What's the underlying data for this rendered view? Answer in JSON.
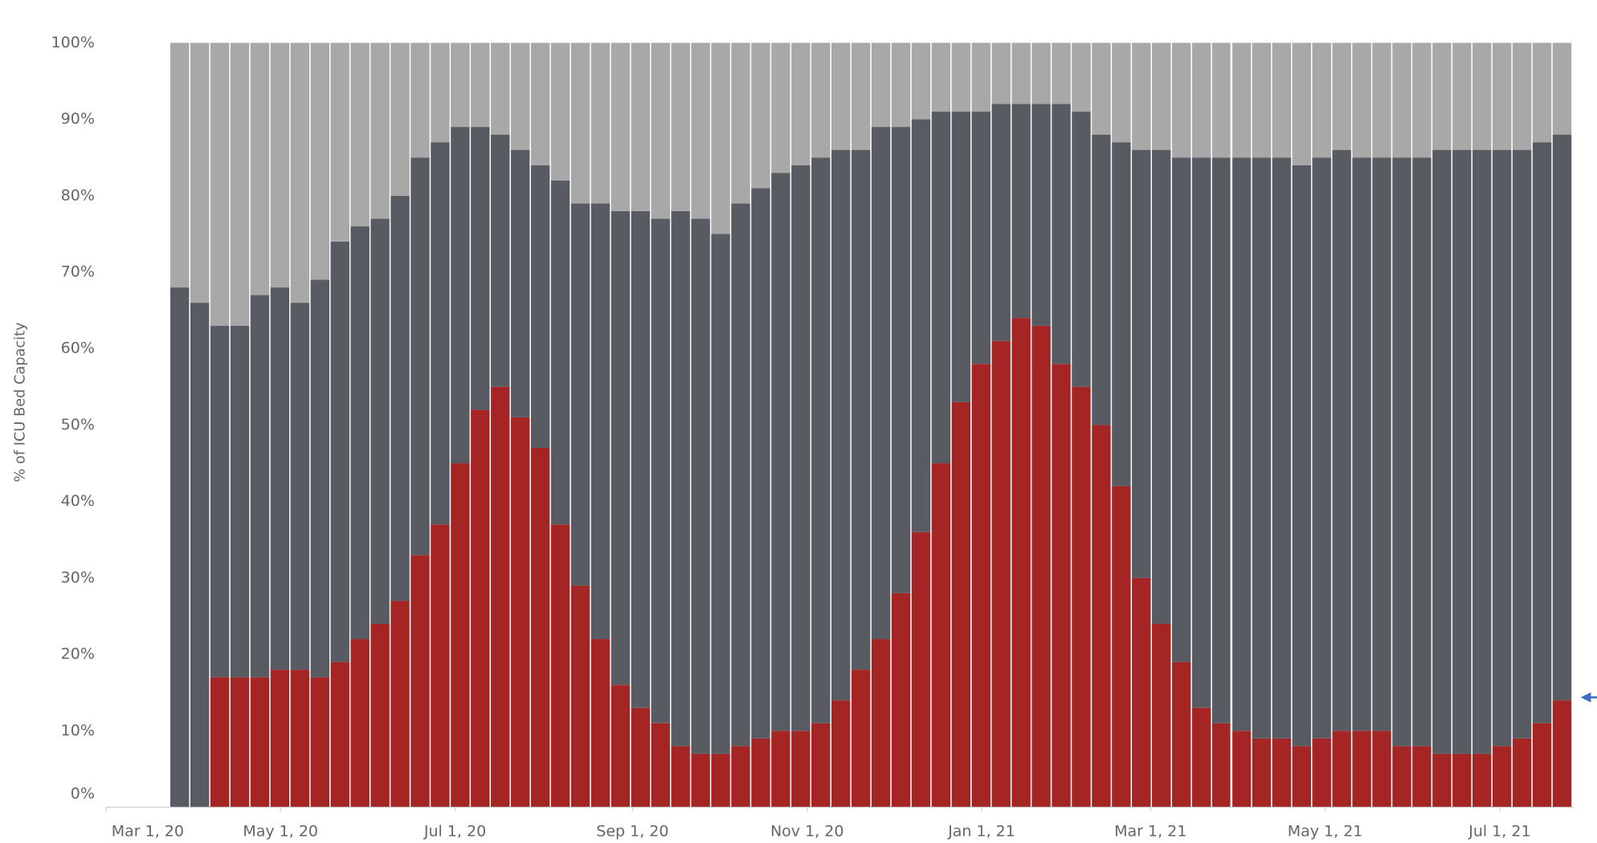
{
  "chart_data": {
    "type": "stacked_bar",
    "y_label": "% of ICU Bed Capacity",
    "x": [
      "2020-03-27",
      "2020-04-03",
      "2020-04-10",
      "2020-04-17",
      "2020-04-24",
      "2020-05-01",
      "2020-05-08",
      "2020-05-15",
      "2020-05-22",
      "2020-05-29",
      "2020-06-05",
      "2020-06-12",
      "2020-06-19",
      "2020-06-26",
      "2020-07-03",
      "2020-07-10",
      "2020-07-17",
      "2020-07-24",
      "2020-07-31",
      "2020-08-07",
      "2020-08-14",
      "2020-08-21",
      "2020-08-28",
      "2020-09-04",
      "2020-09-11",
      "2020-09-18",
      "2020-09-25",
      "2020-10-02",
      "2020-10-09",
      "2020-10-16",
      "2020-10-23",
      "2020-10-30",
      "2020-11-06",
      "2020-11-13",
      "2020-11-20",
      "2020-11-27",
      "2020-12-04",
      "2020-12-11",
      "2020-12-18",
      "2020-12-25",
      "2021-01-01",
      "2021-01-08",
      "2021-01-15",
      "2021-01-22",
      "2021-01-29",
      "2021-02-05",
      "2021-02-12",
      "2021-02-19",
      "2021-02-26",
      "2021-03-05",
      "2021-03-12",
      "2021-03-19",
      "2021-03-26",
      "2021-04-02",
      "2021-04-09",
      "2021-04-16",
      "2021-04-23",
      "2021-04-30",
      "2021-05-07",
      "2021-05-14",
      "2021-05-21",
      "2021-05-28",
      "2021-06-04",
      "2021-06-11",
      "2021-06-18",
      "2021-06-25",
      "2021-07-02",
      "2021-07-09",
      "2021-07-16",
      "2021-07-23"
    ],
    "series": [
      {
        "color": "#a52525",
        "values": [
          0,
          0,
          17,
          17,
          17,
          18,
          18,
          17,
          19,
          22,
          24,
          27,
          33,
          37,
          45,
          52,
          55,
          51,
          47,
          37,
          29,
          22,
          16,
          13,
          11,
          8,
          7,
          7,
          8,
          9,
          10,
          10,
          11,
          14,
          18,
          22,
          28,
          36,
          45,
          53,
          58,
          61,
          64,
          63,
          58,
          55,
          50,
          42,
          30,
          24,
          19,
          13,
          11,
          10,
          9,
          9,
          8,
          9,
          10,
          10,
          10,
          8,
          8,
          7,
          7,
          7,
          8,
          9,
          11,
          14
        ]
      },
      {
        "color": "#585b61",
        "values": [
          68,
          66,
          46,
          46,
          50,
          50,
          48,
          52,
          55,
          54,
          53,
          53,
          52,
          50,
          44,
          37,
          33,
          35,
          37,
          45,
          50,
          57,
          62,
          65,
          66,
          70,
          70,
          68,
          71,
          72,
          73,
          74,
          74,
          72,
          68,
          67,
          61,
          54,
          46,
          38,
          33,
          31,
          28,
          29,
          34,
          36,
          38,
          45,
          56,
          62,
          66,
          72,
          74,
          75,
          76,
          76,
          76,
          76,
          76,
          75,
          75,
          77,
          77,
          79,
          79,
          79,
          78,
          77,
          76,
          74
        ]
      },
      {
        "color": "#a8a8a8",
        "values": [
          32,
          34,
          37,
          37,
          33,
          32,
          34,
          31,
          26,
          24,
          23,
          20,
          15,
          13,
          11,
          11,
          12,
          14,
          16,
          18,
          21,
          21,
          22,
          22,
          23,
          22,
          23,
          25,
          21,
          19,
          17,
          16,
          15,
          14,
          14,
          11,
          11,
          10,
          9,
          9,
          9,
          8,
          8,
          8,
          8,
          9,
          12,
          13,
          14,
          14,
          15,
          15,
          15,
          15,
          15,
          15,
          16,
          15,
          14,
          15,
          15,
          15,
          15,
          14,
          14,
          14,
          14,
          14,
          13,
          12
        ]
      }
    ],
    "xlim": [
      "2020-03-01",
      "2021-08-01"
    ],
    "xticks": [
      {
        "value": "2020-03-01",
        "label": "Mar 1, 20"
      },
      {
        "value": "2020-05-01",
        "label": "May 1, 20"
      },
      {
        "value": "2020-07-01",
        "label": "Jul 1, 20"
      },
      {
        "value": "2020-09-01",
        "label": "Sep 1, 20"
      },
      {
        "value": "2020-11-01",
        "label": "Nov 1, 20"
      },
      {
        "value": "2021-01-01",
        "label": "Jan 1, 21"
      },
      {
        "value": "2021-03-01",
        "label": "Mar 1, 21"
      },
      {
        "value": "2021-05-01",
        "label": "May 1, 21"
      },
      {
        "value": "2021-07-01",
        "label": "Jul 1, 21"
      }
    ],
    "ylim": [
      0,
      100
    ],
    "yticks": [
      {
        "value": 0,
        "label": "0%"
      },
      {
        "value": 10,
        "label": "10%"
      },
      {
        "value": 20,
        "label": "20%"
      },
      {
        "value": 30,
        "label": "30%"
      },
      {
        "value": 40,
        "label": "40%"
      },
      {
        "value": 50,
        "label": "50%"
      },
      {
        "value": 60,
        "label": "60%"
      },
      {
        "value": 70,
        "label": "70%"
      },
      {
        "value": 80,
        "label": "80%"
      },
      {
        "value": 90,
        "label": "90%"
      },
      {
        "value": 100,
        "label": "100%"
      }
    ],
    "grid": false
  }
}
